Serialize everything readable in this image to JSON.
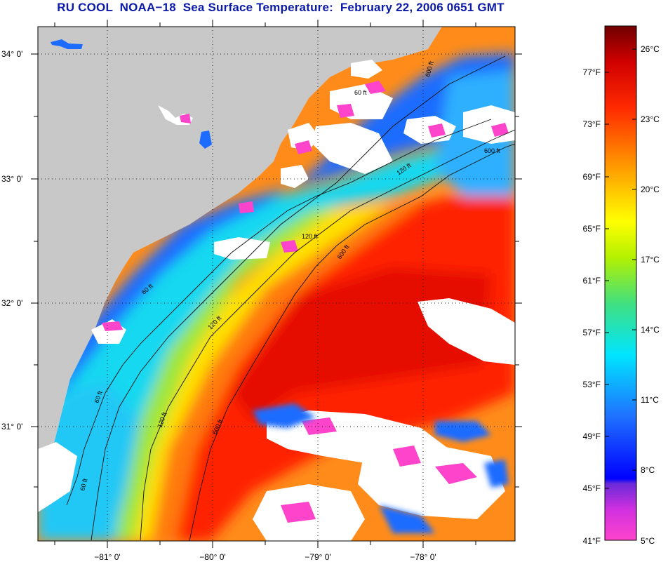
{
  "title": "RU COOL  NOAA−18  Sea Surface Temperature:  February 22, 2006 0651 GMT",
  "map": {
    "lat_labels": [
      "34° 0'",
      "33° 0'",
      "32° 0'",
      "31° 0'"
    ],
    "lon_labels": [
      "−81° 0'",
      "−80° 0'",
      "−79° 0'",
      "−78° 0'"
    ],
    "contour_labels": [
      "60 ft",
      "120 ft",
      "600 ft",
      "60 ft",
      "120 ft",
      "600 ft",
      "60 ft",
      "120 ft",
      "600 ft",
      "120 ft",
      "600 ft",
      "60 ft"
    ],
    "colors": {
      "land": "#c8c8c8",
      "cloud": "#ffffff",
      "title": "#0b1aa8"
    }
  },
  "colorbar": {
    "fahrenheit_labels": [
      "77°F",
      "73°F",
      "69°F",
      "65°F",
      "61°F",
      "57°F",
      "53°F",
      "49°F",
      "45°F",
      "41°F"
    ],
    "celsius_labels": [
      "26°C",
      "23°C",
      "20°C",
      "17°C",
      "14°C",
      "11°C",
      "8°C",
      "5°C"
    ],
    "range_celsius": [
      5,
      27
    ],
    "gradient": [
      "#ff44cc",
      "#8a1fc8",
      "#0000ff",
      "#1f6fff",
      "#00e5ff",
      "#37e08a",
      "#c8f000",
      "#ffff00",
      "#ff9900",
      "#ff2a00",
      "#e00000",
      "#7a0000"
    ]
  }
}
